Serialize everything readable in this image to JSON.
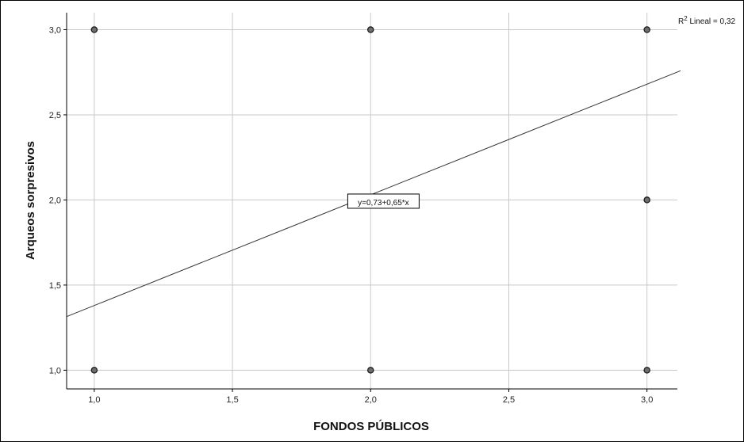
{
  "chart_data": {
    "type": "scatter",
    "xlabel": "FONDOS PÚBLICOS",
    "ylabel": "Arqueos sorpresivos",
    "xlim": [
      0.9,
      3.11
    ],
    "ylim": [
      0.89,
      3.1
    ],
    "x_ticks": [
      "1,0",
      "1,5",
      "2,0",
      "2,5",
      "3,0"
    ],
    "y_ticks": [
      "1,0",
      "1,5",
      "2,0",
      "2,5",
      "3,0"
    ],
    "grid": true,
    "points": [
      {
        "x": 1,
        "y": 3
      },
      {
        "x": 2,
        "y": 3
      },
      {
        "x": 3,
        "y": 3
      },
      {
        "x": 3,
        "y": 2
      },
      {
        "x": 1,
        "y": 1
      },
      {
        "x": 2,
        "y": 1
      },
      {
        "x": 3,
        "y": 1
      }
    ],
    "fit": {
      "intercept": 0.73,
      "slope": 0.65,
      "label": "y=0,73+0,65*x"
    },
    "r2_label": {
      "prefix": "R",
      "sup": "2",
      "text": " Lineal = 0,32"
    },
    "colors": {
      "point_fill": "#6e6e6e",
      "point_stroke": "#1a1a1a",
      "grid": "#c8c8c8",
      "line": "#333333"
    }
  }
}
